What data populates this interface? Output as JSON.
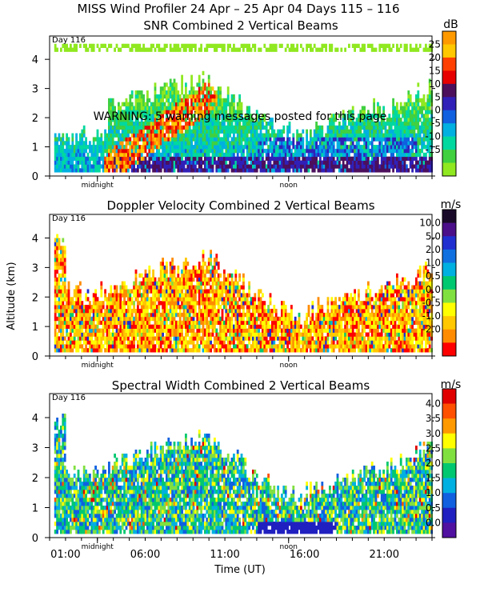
{
  "figure": {
    "title": "MISS Wind Profiler  24 Apr – 25 Apr 04 Days 115 – 116",
    "warning": "WARNING: 5 warning messages posted for this page",
    "xlabel": "Time (UT)",
    "ylabel": "Altitude (km)",
    "xticks": [
      "01:00",
      "06:00",
      "11:00",
      "16:00",
      "21:00"
    ],
    "markers": [
      "midnight",
      "noon"
    ],
    "day_label": "Day 116"
  },
  "chart_data": [
    {
      "type": "heatmap",
      "title": "SNR Combined 2 Vertical Beams",
      "xlabel": "Time (UT)",
      "ylabel": "Altitude (km)",
      "xlim": [
        0,
        24
      ],
      "ylim": [
        0,
        4.8
      ],
      "yticks": [
        0,
        1,
        2,
        3,
        4
      ],
      "colorbar": {
        "unit": "dB",
        "labels": [
          "25",
          "20",
          "15",
          "10",
          "5",
          "0",
          "-5",
          "-10",
          "-15"
        ],
        "colors": [
          "#ff9900",
          "#ffc800",
          "#ff4000",
          "#e60000",
          "#4b0f5c",
          "#3020b8",
          "#1060e0",
          "#00b0e0",
          "#00d8a0",
          "#40d040",
          "#90e820"
        ]
      }
    },
    {
      "type": "heatmap",
      "title": "Doppler Velocity Combined 2 Vertical Beams",
      "xlabel": "Time (UT)",
      "ylabel": "Altitude (km)",
      "xlim": [
        0,
        24
      ],
      "ylim": [
        0,
        4.8
      ],
      "yticks": [
        0,
        1,
        2,
        3,
        4
      ],
      "colorbar": {
        "unit": "m/s",
        "labels": [
          "10.0",
          "5.0",
          "2.0",
          "1.0",
          "0.5",
          "0.0",
          "-0.5",
          "-1.0",
          "-2.0"
        ],
        "colors": [
          "#1a0a2a",
          "#4b0f8a",
          "#2030d0",
          "#1070e0",
          "#00b0e0",
          "#00c870",
          "#80e040",
          "#ffff00",
          "#ffc800",
          "#ff8c00",
          "#ff0000"
        ]
      }
    },
    {
      "type": "heatmap",
      "title": "Spectral Width Combined 2 Vertical Beams",
      "xlabel": "Time (UT)",
      "ylabel": "Altitude (km)",
      "xlim": [
        0,
        24
      ],
      "ylim": [
        0,
        4.8
      ],
      "yticks": [
        0,
        1,
        2,
        3,
        4
      ],
      "colorbar": {
        "unit": "m/s",
        "labels": [
          "4.0",
          "3.5",
          "3.0",
          "2.5",
          "2.0",
          "1.5",
          "1.0",
          "0.5",
          "0.0"
        ],
        "colors": [
          "#e00000",
          "#ff5000",
          "#ff9900",
          "#ffff00",
          "#80e040",
          "#00c870",
          "#00b0e0",
          "#1060e0",
          "#2020c0",
          "#5010a0"
        ]
      }
    }
  ]
}
